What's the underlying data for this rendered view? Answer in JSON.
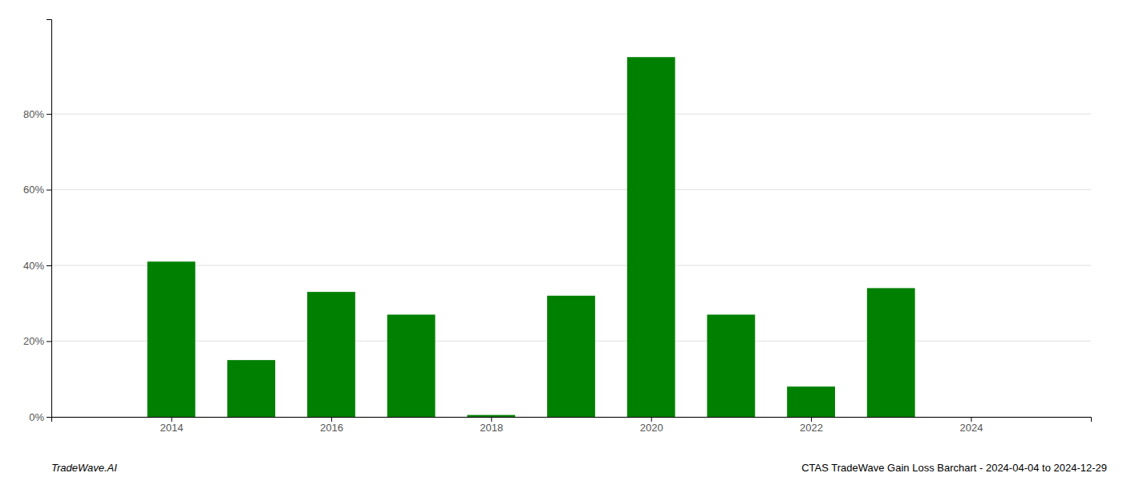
{
  "chart_data": {
    "type": "bar",
    "x": [
      2014,
      2015,
      2016,
      2017,
      2018,
      2019,
      2020,
      2021,
      2022,
      2023
    ],
    "values": [
      0.41,
      0.15,
      0.33,
      0.27,
      0.005,
      0.32,
      0.95,
      0.27,
      0.08,
      0.34
    ],
    "color": "#008000",
    "xlim": [
      2012.5,
      2025.5
    ],
    "xticks": [
      2014,
      2016,
      2018,
      2020,
      2022,
      2024
    ],
    "ylim": [
      0,
      1.05
    ],
    "yticks": [
      {
        "value": 0,
        "label": "0%"
      },
      {
        "value": 0.2,
        "label": "20%"
      },
      {
        "value": 0.4,
        "label": "40%"
      },
      {
        "value": 0.6,
        "label": "60%"
      },
      {
        "value": 0.8,
        "label": "80%"
      }
    ],
    "grid": true,
    "annotations": [
      "TradeWave.AI",
      "CTAS TradeWave Gain Loss Barchart - 2024-04-04 to 2024-12-29"
    ]
  }
}
